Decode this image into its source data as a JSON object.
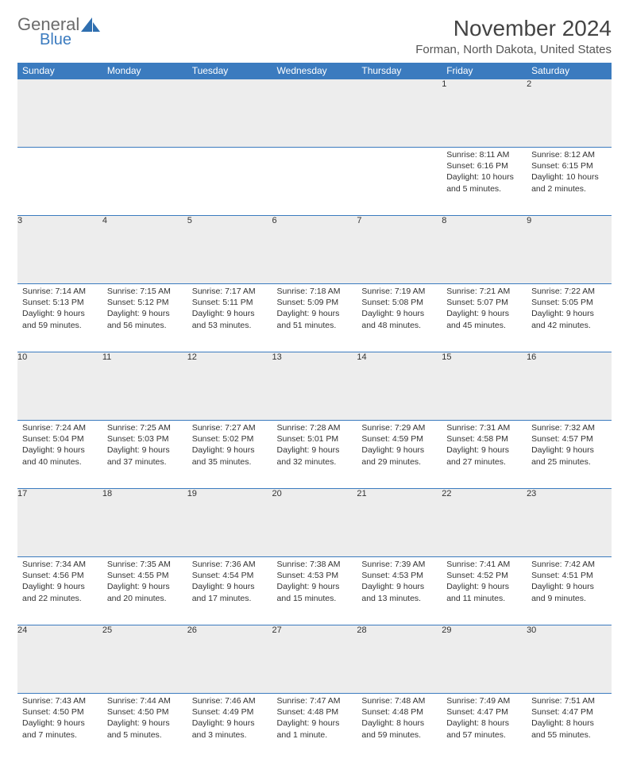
{
  "logo": {
    "general": "General",
    "blue": "Blue",
    "icon_color": "#2f6fb0"
  },
  "title": "November 2024",
  "location": "Forman, North Dakota, United States",
  "header_bg": "#3b7bbf",
  "daynum_bg": "#ededed",
  "rule_color": "#3b7bbf",
  "text_color": "#333333",
  "days": [
    "Sunday",
    "Monday",
    "Tuesday",
    "Wednesday",
    "Thursday",
    "Friday",
    "Saturday"
  ],
  "weeks": [
    [
      null,
      null,
      null,
      null,
      null,
      {
        "n": "1",
        "sr": "8:11 AM",
        "ss": "6:16 PM",
        "dl": "10 hours and 5 minutes."
      },
      {
        "n": "2",
        "sr": "8:12 AM",
        "ss": "6:15 PM",
        "dl": "10 hours and 2 minutes."
      }
    ],
    [
      {
        "n": "3",
        "sr": "7:14 AM",
        "ss": "5:13 PM",
        "dl": "9 hours and 59 minutes."
      },
      {
        "n": "4",
        "sr": "7:15 AM",
        "ss": "5:12 PM",
        "dl": "9 hours and 56 minutes."
      },
      {
        "n": "5",
        "sr": "7:17 AM",
        "ss": "5:11 PM",
        "dl": "9 hours and 53 minutes."
      },
      {
        "n": "6",
        "sr": "7:18 AM",
        "ss": "5:09 PM",
        "dl": "9 hours and 51 minutes."
      },
      {
        "n": "7",
        "sr": "7:19 AM",
        "ss": "5:08 PM",
        "dl": "9 hours and 48 minutes."
      },
      {
        "n": "8",
        "sr": "7:21 AM",
        "ss": "5:07 PM",
        "dl": "9 hours and 45 minutes."
      },
      {
        "n": "9",
        "sr": "7:22 AM",
        "ss": "5:05 PM",
        "dl": "9 hours and 42 minutes."
      }
    ],
    [
      {
        "n": "10",
        "sr": "7:24 AM",
        "ss": "5:04 PM",
        "dl": "9 hours and 40 minutes."
      },
      {
        "n": "11",
        "sr": "7:25 AM",
        "ss": "5:03 PM",
        "dl": "9 hours and 37 minutes."
      },
      {
        "n": "12",
        "sr": "7:27 AM",
        "ss": "5:02 PM",
        "dl": "9 hours and 35 minutes."
      },
      {
        "n": "13",
        "sr": "7:28 AM",
        "ss": "5:01 PM",
        "dl": "9 hours and 32 minutes."
      },
      {
        "n": "14",
        "sr": "7:29 AM",
        "ss": "4:59 PM",
        "dl": "9 hours and 29 minutes."
      },
      {
        "n": "15",
        "sr": "7:31 AM",
        "ss": "4:58 PM",
        "dl": "9 hours and 27 minutes."
      },
      {
        "n": "16",
        "sr": "7:32 AM",
        "ss": "4:57 PM",
        "dl": "9 hours and 25 minutes."
      }
    ],
    [
      {
        "n": "17",
        "sr": "7:34 AM",
        "ss": "4:56 PM",
        "dl": "9 hours and 22 minutes."
      },
      {
        "n": "18",
        "sr": "7:35 AM",
        "ss": "4:55 PM",
        "dl": "9 hours and 20 minutes."
      },
      {
        "n": "19",
        "sr": "7:36 AM",
        "ss": "4:54 PM",
        "dl": "9 hours and 17 minutes."
      },
      {
        "n": "20",
        "sr": "7:38 AM",
        "ss": "4:53 PM",
        "dl": "9 hours and 15 minutes."
      },
      {
        "n": "21",
        "sr": "7:39 AM",
        "ss": "4:53 PM",
        "dl": "9 hours and 13 minutes."
      },
      {
        "n": "22",
        "sr": "7:41 AM",
        "ss": "4:52 PM",
        "dl": "9 hours and 11 minutes."
      },
      {
        "n": "23",
        "sr": "7:42 AM",
        "ss": "4:51 PM",
        "dl": "9 hours and 9 minutes."
      }
    ],
    [
      {
        "n": "24",
        "sr": "7:43 AM",
        "ss": "4:50 PM",
        "dl": "9 hours and 7 minutes."
      },
      {
        "n": "25",
        "sr": "7:44 AM",
        "ss": "4:50 PM",
        "dl": "9 hours and 5 minutes."
      },
      {
        "n": "26",
        "sr": "7:46 AM",
        "ss": "4:49 PM",
        "dl": "9 hours and 3 minutes."
      },
      {
        "n": "27",
        "sr": "7:47 AM",
        "ss": "4:48 PM",
        "dl": "9 hours and 1 minute."
      },
      {
        "n": "28",
        "sr": "7:48 AM",
        "ss": "4:48 PM",
        "dl": "8 hours and 59 minutes."
      },
      {
        "n": "29",
        "sr": "7:49 AM",
        "ss": "4:47 PM",
        "dl": "8 hours and 57 minutes."
      },
      {
        "n": "30",
        "sr": "7:51 AM",
        "ss": "4:47 PM",
        "dl": "8 hours and 55 minutes."
      }
    ]
  ],
  "labels": {
    "sunrise": "Sunrise:",
    "sunset": "Sunset:",
    "daylight": "Daylight:"
  }
}
